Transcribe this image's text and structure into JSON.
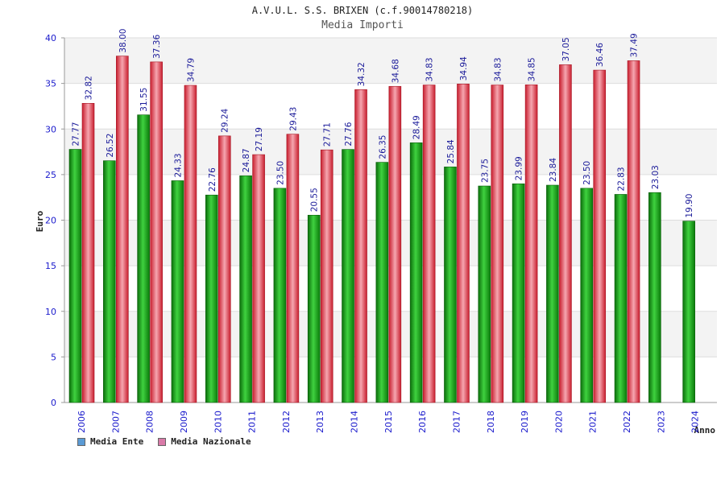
{
  "colors": {
    "ente": "#1fae1f",
    "nazionale": "#e8384a",
    "legend_ente": "#5b9bd5",
    "legend_nazionale": "#d97aa8",
    "axis_text": "#1a1acc",
    "label_text": "#1a1a99"
  },
  "chart_data": {
    "type": "bar",
    "title": "A.V.U.L. S.S. BRIXEN (c.f.90014780218)",
    "subtitle": "Media Importi",
    "xlabel": "Anno",
    "ylabel": "Euro",
    "ylim": [
      0,
      40
    ],
    "yticks": [
      "0",
      "5",
      "10",
      "15",
      "20",
      "25",
      "30",
      "35",
      "40"
    ],
    "categories": [
      "2006",
      "2007",
      "2008",
      "2009",
      "2010",
      "2011",
      "2012",
      "2013",
      "2014",
      "2015",
      "2016",
      "2017",
      "2018",
      "2019",
      "2020",
      "2021",
      "2022",
      "2023",
      "2024"
    ],
    "series": [
      {
        "name": "Media Ente",
        "values": [
          27.77,
          26.52,
          31.55,
          24.33,
          22.76,
          24.87,
          23.5,
          20.55,
          27.76,
          26.35,
          28.49,
          25.84,
          23.75,
          23.99,
          23.84,
          23.5,
          22.83,
          23.03,
          19.9
        ],
        "labels": [
          "27.77",
          "26.52",
          "31.55",
          "24.33",
          "22.76",
          "24.87",
          "23.50",
          "20.55",
          "27.76",
          "26.35",
          "28.49",
          "25.84",
          "23.75",
          "23.99",
          "23.84",
          "23.50",
          "22.83",
          "23.03",
          "19.90"
        ]
      },
      {
        "name": "Media Nazionale",
        "values": [
          32.82,
          38.0,
          37.36,
          34.79,
          29.24,
          27.19,
          29.43,
          27.71,
          34.32,
          34.68,
          34.83,
          34.94,
          34.83,
          34.85,
          37.05,
          36.46,
          37.49,
          null,
          null
        ],
        "labels": [
          "32.82",
          "38.00",
          "37.36",
          "34.79",
          "29.24",
          "27.19",
          "29.43",
          "27.71",
          "34.32",
          "34.68",
          "34.83",
          "34.94",
          "34.83",
          "34.85",
          "37.05",
          "36.46",
          "37.49",
          null,
          null
        ]
      }
    ],
    "grid": true,
    "legend_position": "bottom-left"
  }
}
